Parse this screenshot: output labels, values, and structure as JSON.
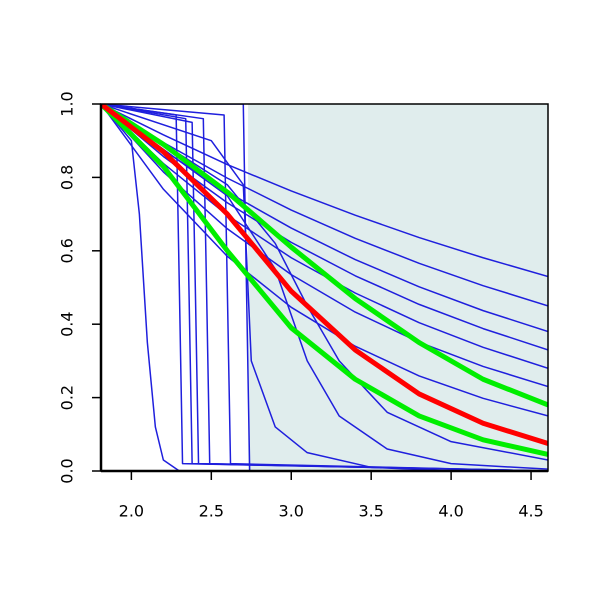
{
  "chart_data": {
    "type": "line",
    "xlim": [
      1.81,
      4.606
    ],
    "ylim": [
      0,
      1
    ],
    "xticks": [
      {
        "value": 2,
        "label": "2.0"
      },
      {
        "value": 2.5,
        "label": "2.5"
      },
      {
        "value": 3,
        "label": "3.0"
      },
      {
        "value": 3.5,
        "label": "3.5"
      },
      {
        "value": 4,
        "label": "4.0"
      },
      {
        "value": 4.5,
        "label": "4.5"
      }
    ],
    "yticks": [
      {
        "value": 0,
        "label": "0.0"
      },
      {
        "value": 0.2,
        "label": "0.2"
      },
      {
        "value": 0.4,
        "label": "0.4"
      },
      {
        "value": 0.6,
        "label": "0.6"
      },
      {
        "value": 0.8,
        "label": "0.8"
      },
      {
        "value": 1,
        "label": "1.0"
      }
    ],
    "shaded_region": {
      "x": [
        2.73,
        4.606
      ],
      "y": [
        0,
        1
      ],
      "color": "#e0eded"
    },
    "series": [
      {
        "color": "#1f1fdd",
        "width": 1.5,
        "x": [
          1.81,
          2.2,
          2.6,
          3.0,
          3.4,
          3.8,
          4.2,
          4.606
        ],
        "values": [
          1,
          0.916,
          0.835,
          0.763,
          0.697,
          0.636,
          0.581,
          0.53
        ]
      },
      {
        "color": "#1f1fdd",
        "width": 1.5,
        "x": [
          1.81,
          2.2,
          2.6,
          3.0,
          3.4,
          3.8,
          4.2,
          4.606
        ],
        "values": [
          1,
          0.895,
          0.798,
          0.711,
          0.634,
          0.566,
          0.505,
          0.45
        ]
      },
      {
        "color": "#1f1fdd",
        "width": 1.5,
        "x": [
          1.81,
          2.2,
          2.6,
          3.0,
          3.4,
          3.8,
          4.2,
          4.606
        ],
        "values": [
          1,
          0.874,
          0.76,
          0.662,
          0.576,
          0.502,
          0.437,
          0.38
        ]
      },
      {
        "color": "#1f1fdd",
        "width": 1.5,
        "x": [
          1.81,
          2.2,
          2.6,
          3.0,
          3.4,
          3.8,
          4.2,
          4.606
        ],
        "values": [
          1,
          0.857,
          0.731,
          0.623,
          0.532,
          0.454,
          0.388,
          0.33
        ]
      },
      {
        "color": "#1f1fdd",
        "width": 1.5,
        "x": [
          1.81,
          2.2,
          2.6,
          3.0,
          3.4,
          3.8,
          4.2,
          4.606
        ],
        "values": [
          1,
          0.838,
          0.697,
          0.581,
          0.485,
          0.404,
          0.337,
          0.28
        ]
      },
      {
        "color": "#1f1fdd",
        "width": 1.5,
        "x": [
          1.81,
          2.2,
          2.6,
          3.0,
          3.4,
          3.8,
          4.2,
          4.606
        ],
        "values": [
          1,
          0.815,
          0.66,
          0.535,
          0.433,
          0.351,
          0.285,
          0.23
        ]
      },
      {
        "color": "#1f1fdd",
        "width": 1.5,
        "x": [
          1.81,
          2.2,
          2.6,
          3.0,
          3.4,
          3.8,
          4.2,
          4.606
        ],
        "values": [
          1,
          0.768,
          0.585,
          0.446,
          0.34,
          0.259,
          0.198,
          0.15
        ]
      },
      {
        "color": "#1f1fdd",
        "width": 1.5,
        "x": [
          1.81,
          2.0,
          2.05,
          2.1,
          2.15,
          2.2,
          2.3,
          4.606
        ],
        "values": [
          1,
          0.9,
          0.7,
          0.35,
          0.12,
          0.03,
          0,
          0
        ]
      },
      {
        "color": "#1f1fdd",
        "width": 1.5,
        "x": [
          1.81,
          2.28,
          2.3,
          2.32,
          4.606
        ],
        "values": [
          1,
          0.97,
          0.5,
          0.02,
          0
        ]
      },
      {
        "color": "#1f1fdd",
        "width": 1.5,
        "x": [
          1.81,
          2.34,
          2.36,
          2.38,
          4.606
        ],
        "values": [
          1,
          0.96,
          0.5,
          0.02,
          0
        ]
      },
      {
        "color": "#1f1fdd",
        "width": 1.5,
        "x": [
          1.81,
          2.38,
          2.4,
          2.42,
          4.606
        ],
        "values": [
          1,
          0.95,
          0.5,
          0.02,
          0
        ]
      },
      {
        "color": "#1f1fdd",
        "width": 1.5,
        "x": [
          1.81,
          2.45,
          2.47,
          2.49,
          4.606
        ],
        "values": [
          1,
          0.96,
          0.5,
          0.02,
          0
        ]
      },
      {
        "color": "#1f1fdd",
        "width": 1.5,
        "x": [
          1.81,
          2.58,
          2.6,
          2.62,
          4.606
        ],
        "values": [
          1,
          0.97,
          0.5,
          0.02,
          0
        ]
      },
      {
        "color": "#1f1fdd",
        "width": 1.5,
        "x": [
          1.81,
          2.7,
          2.72,
          2.74,
          4.606
        ],
        "values": [
          1,
          1,
          0.5,
          0,
          0
        ]
      },
      {
        "color": "#1f1fdd",
        "width": 1.5,
        "x": [
          1.81,
          2.6,
          2.9,
          3.1,
          3.3,
          3.6,
          4.0,
          4.606
        ],
        "values": [
          1,
          0.75,
          0.55,
          0.3,
          0.15,
          0.06,
          0.02,
          0.005
        ]
      },
      {
        "color": "#1f1fdd",
        "width": 1.5,
        "x": [
          1.81,
          2.6,
          2.9,
          3.1,
          3.3,
          3.6,
          4.0,
          4.606
        ],
        "values": [
          1,
          0.78,
          0.62,
          0.45,
          0.3,
          0.16,
          0.08,
          0.03
        ]
      },
      {
        "color": "#1f1fdd",
        "width": 1.5,
        "x": [
          1.81,
          2.5,
          2.7,
          2.75,
          2.9,
          3.1,
          3.5,
          4.0,
          4.606
        ],
        "values": [
          1,
          0.9,
          0.78,
          0.3,
          0.12,
          0.05,
          0.01,
          0,
          0
        ]
      },
      {
        "color": "#00ee00",
        "width": 5,
        "x": [
          1.81,
          2.2,
          2.6,
          3.0,
          3.4,
          3.8,
          4.2,
          4.606
        ],
        "values": [
          1,
          0.89,
          0.76,
          0.61,
          0.47,
          0.35,
          0.25,
          0.18
        ]
      },
      {
        "color": "#00ee00",
        "width": 5,
        "x": [
          1.81,
          2.2,
          2.6,
          3.0,
          3.4,
          3.8,
          4.2,
          4.606
        ],
        "values": [
          1,
          0.83,
          0.6,
          0.39,
          0.25,
          0.15,
          0.085,
          0.045
        ]
      },
      {
        "color": "#ff0000",
        "width": 5,
        "x": [
          1.81,
          2.2,
          2.6,
          3.0,
          3.4,
          3.8,
          4.2,
          4.606
        ],
        "values": [
          1,
          0.87,
          0.7,
          0.49,
          0.33,
          0.21,
          0.13,
          0.075
        ]
      }
    ]
  }
}
